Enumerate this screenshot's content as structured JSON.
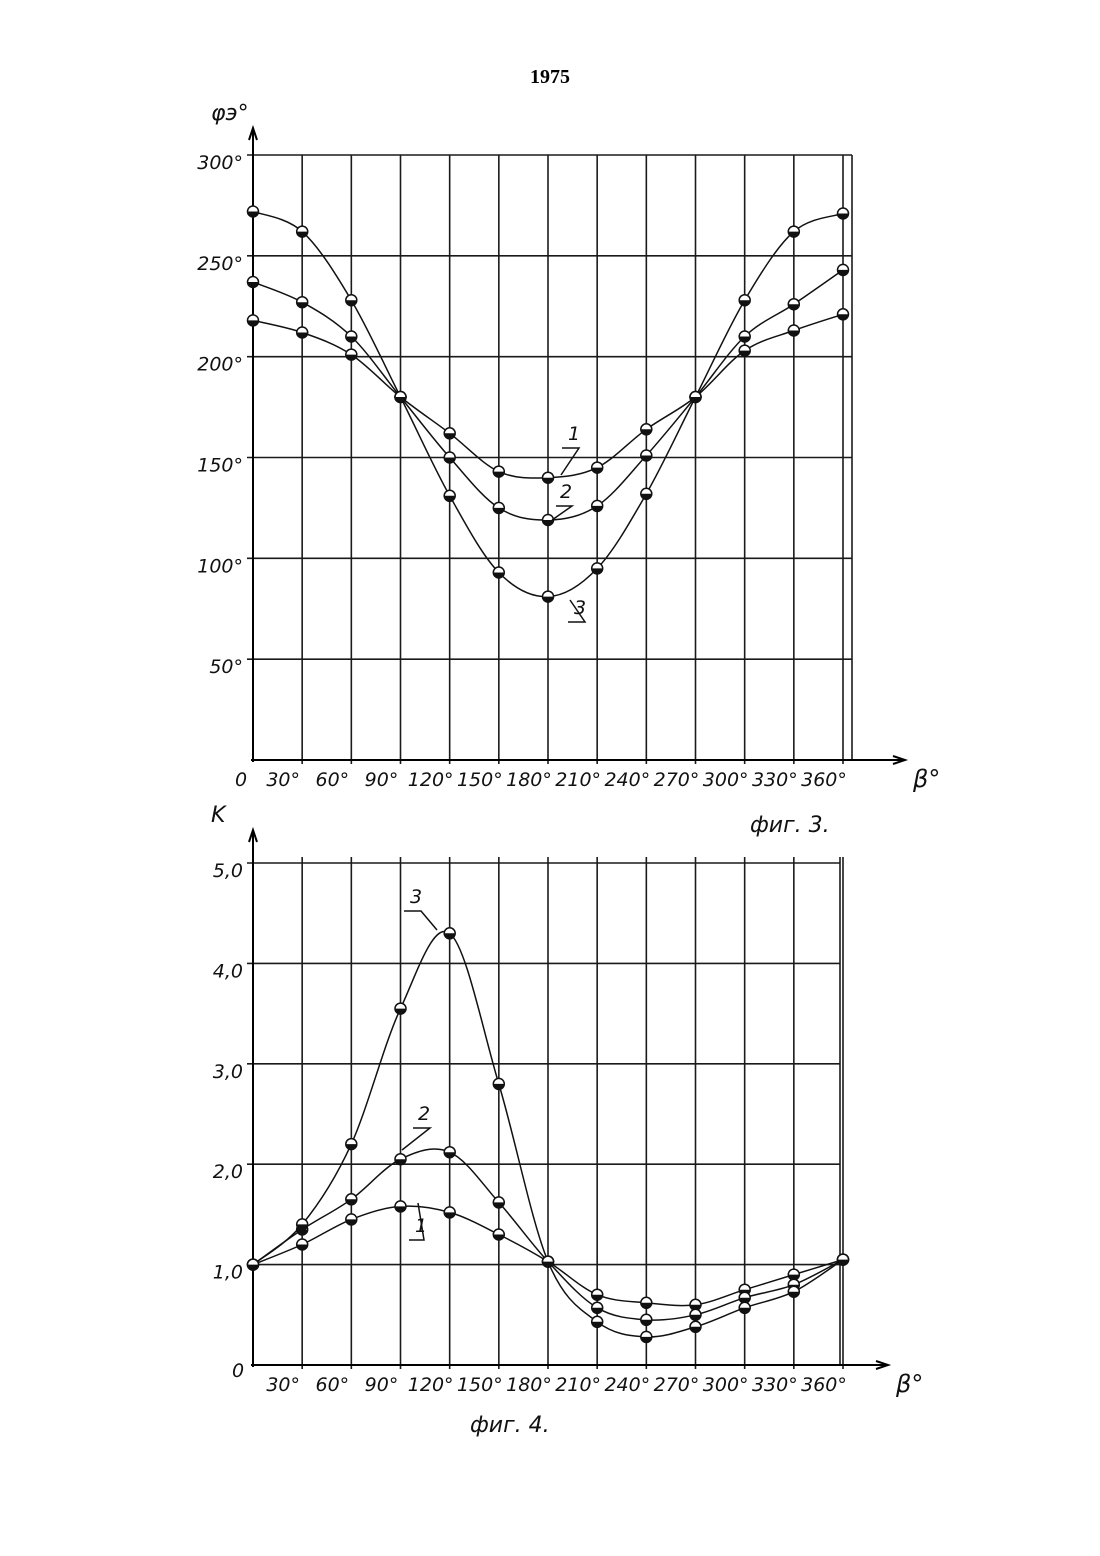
{
  "page": {
    "number": "1975"
  },
  "chart_data": [
    {
      "type": "line",
      "caption": "фиг. 3.",
      "ylabel": "φэ°",
      "xlabel": "β°",
      "xlim": [
        0,
        360
      ],
      "ylim": [
        0,
        300
      ],
      "grid": true,
      "x_ticks": [
        {
          "value": 0,
          "label": "0"
        },
        {
          "value": 30,
          "label": "30°"
        },
        {
          "value": 60,
          "label": "60°"
        },
        {
          "value": 90,
          "label": "90°"
        },
        {
          "value": 120,
          "label": "120°"
        },
        {
          "value": 150,
          "label": "150°"
        },
        {
          "value": 180,
          "label": "180°"
        },
        {
          "value": 210,
          "label": "210°"
        },
        {
          "value": 240,
          "label": "240°"
        },
        {
          "value": 270,
          "label": "270°"
        },
        {
          "value": 300,
          "label": "300°"
        },
        {
          "value": 330,
          "label": "330°"
        },
        {
          "value": 360,
          "label": "360°"
        }
      ],
      "y_ticks": [
        {
          "value": 50,
          "label": "50°"
        },
        {
          "value": 100,
          "label": "100°"
        },
        {
          "value": 150,
          "label": "150°"
        },
        {
          "value": 200,
          "label": "200°"
        },
        {
          "value": 250,
          "label": "250°"
        },
        {
          "value": 300,
          "label": "300°"
        }
      ],
      "x": [
        0,
        30,
        60,
        90,
        120,
        150,
        180,
        210,
        240,
        270,
        300,
        330,
        360
      ],
      "series": [
        {
          "name": "1",
          "values": [
            218,
            212,
            201,
            180,
            162,
            143,
            140,
            145,
            164,
            180,
            203,
            213,
            221
          ]
        },
        {
          "name": "2",
          "values": [
            237,
            227,
            210,
            180,
            150,
            125,
            119,
            126,
            151,
            180,
            210,
            226,
            243
          ]
        },
        {
          "name": "3",
          "values": [
            272,
            262,
            228,
            180,
            131,
            93,
            81,
            95,
            132,
            180,
            228,
            262,
            271
          ]
        }
      ]
    },
    {
      "type": "line",
      "caption": "фиг. 4.",
      "ylabel": "K",
      "xlabel": "β°",
      "xlim": [
        0,
        360
      ],
      "ylim": [
        0,
        5
      ],
      "grid": true,
      "x_ticks": [
        {
          "value": 30,
          "label": "30°"
        },
        {
          "value": 60,
          "label": "60°"
        },
        {
          "value": 90,
          "label": "90°"
        },
        {
          "value": 120,
          "label": "120°"
        },
        {
          "value": 150,
          "label": "150°"
        },
        {
          "value": 180,
          "label": "180°"
        },
        {
          "value": 210,
          "label": "210°"
        },
        {
          "value": 240,
          "label": "240°"
        },
        {
          "value": 270,
          "label": "270°"
        },
        {
          "value": 300,
          "label": "300°"
        },
        {
          "value": 330,
          "label": "330°"
        },
        {
          "value": 360,
          "label": "360°"
        }
      ],
      "origin_label": "0",
      "y_ticks": [
        {
          "value": 1,
          "label": "1,0"
        },
        {
          "value": 2,
          "label": "2,0"
        },
        {
          "value": 3,
          "label": "3,0"
        },
        {
          "value": 4,
          "label": "4,0"
        },
        {
          "value": 5,
          "label": "5,0"
        }
      ],
      "x": [
        0,
        30,
        60,
        90,
        120,
        150,
        180,
        210,
        240,
        270,
        300,
        330,
        360
      ],
      "series": [
        {
          "name": "1",
          "values": [
            1.0,
            1.2,
            1.45,
            1.58,
            1.52,
            1.3,
            1.03,
            0.7,
            0.62,
            0.6,
            0.75,
            0.9,
            1.05
          ]
        },
        {
          "name": "2",
          "values": [
            1.0,
            1.35,
            1.65,
            2.05,
            2.12,
            1.62,
            1.03,
            0.57,
            0.45,
            0.5,
            0.67,
            0.8,
            1.05
          ]
        },
        {
          "name": "3",
          "values": [
            1.0,
            1.4,
            2.2,
            3.55,
            4.3,
            2.8,
            1.03,
            0.43,
            0.28,
            0.38,
            0.57,
            0.73,
            1.05
          ]
        }
      ]
    }
  ]
}
